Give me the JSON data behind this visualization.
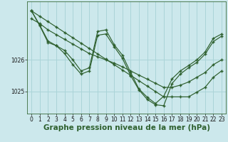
{
  "background_color": "#cce8ec",
  "grid_color": "#aad4d8",
  "line_color": "#2d5f2d",
  "xlabel": "Graphe pression niveau de la mer (hPa)",
  "xlabel_fontsize": 7.5,
  "tick_fontsize": 5.5,
  "ylim": [
    1024.3,
    1027.85
  ],
  "xlim": [
    -0.5,
    23.5
  ],
  "yticks": [
    1025,
    1026
  ],
  "xticks": [
    0,
    1,
    2,
    3,
    4,
    5,
    6,
    7,
    8,
    9,
    10,
    11,
    12,
    13,
    14,
    15,
    16,
    17,
    18,
    19,
    20,
    21,
    22,
    23
  ],
  "series_trend1": [
    1027.55,
    1027.38,
    1027.21,
    1027.04,
    1026.87,
    1026.7,
    1026.53,
    1026.36,
    1026.19,
    1026.02,
    1025.85,
    1025.68,
    1025.51,
    1025.34,
    1025.17,
    1025.0,
    1024.83,
    1024.83,
    1024.83,
    1024.83,
    1024.98,
    1025.13,
    1025.45,
    1025.65
  ],
  "series_trend2": [
    1027.3,
    1027.15,
    1026.95,
    1026.8,
    1026.65,
    1026.5,
    1026.35,
    1026.2,
    1026.1,
    1026.0,
    1025.9,
    1025.78,
    1025.65,
    1025.52,
    1025.39,
    1025.26,
    1025.13,
    1025.13,
    1025.2,
    1025.3,
    1025.45,
    1025.6,
    1025.85,
    1026.0
  ],
  "series_zigzag1": [
    1027.55,
    1027.08,
    1026.55,
    1026.45,
    1026.2,
    1025.85,
    1025.55,
    1025.65,
    1026.78,
    1026.82,
    1026.42,
    1026.05,
    1025.5,
    1025.05,
    1024.75,
    1024.58,
    1024.55,
    1025.25,
    1025.55,
    1025.75,
    1025.92,
    1026.18,
    1026.58,
    1026.75
  ],
  "series_zigzag2": [
    1027.55,
    1027.1,
    1026.6,
    1026.45,
    1026.3,
    1026.0,
    1025.65,
    1025.75,
    1026.9,
    1026.95,
    1026.48,
    1026.15,
    1025.6,
    1025.08,
    1024.82,
    1024.62,
    1024.85,
    1025.4,
    1025.65,
    1025.82,
    1026.0,
    1026.25,
    1026.68,
    1026.82
  ]
}
